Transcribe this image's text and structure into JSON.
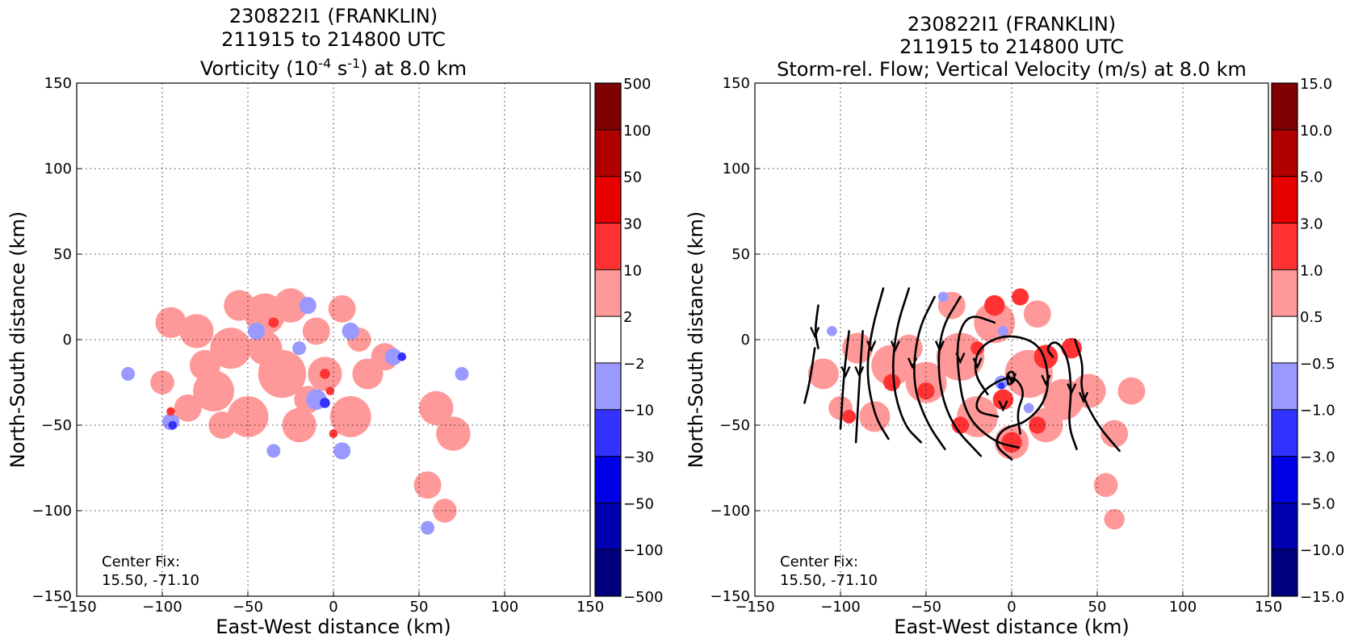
{
  "chart_data": [
    {
      "type": "heatmap",
      "title_lines": [
        "230822I1 (FRANKLIN)",
        "211915 to 214800 UTC"
      ],
      "title_var": {
        "prefix": "Vorticity (10",
        "exp1": "-4",
        "mid": " s",
        "exp2": "-1",
        "suffix": ") at 8.0 km"
      },
      "xlabel": "East-West distance (km)",
      "ylabel": "North-South distance (km)",
      "xlim": [
        -150,
        150
      ],
      "ylim": [
        -150,
        150
      ],
      "xticks": [
        -150,
        -100,
        -50,
        0,
        50,
        100,
        150
      ],
      "yticks": [
        -150,
        -100,
        -50,
        0,
        50,
        100,
        150
      ],
      "tick_labels": [
        "−150",
        "−100",
        "−50",
        "0",
        "50",
        "100",
        "150"
      ],
      "grid": true,
      "annotation": [
        "Center Fix:",
        "15.50, -71.10"
      ],
      "colorbar": {
        "ticks": [
          "500",
          "100",
          "50",
          "30",
          "10",
          "2",
          "−2",
          "−10",
          "−30",
          "−50",
          "−100",
          "−500"
        ],
        "colors": [
          "#7f0000",
          "#b00000",
          "#e60000",
          "#ff3333",
          "#ff9999",
          "#ffffff",
          "#9999ff",
          "#3333ff",
          "#0000e6",
          "#0000b0",
          "#00007f"
        ]
      },
      "fields": {
        "pos": [
          [
            -95,
            10,
            9
          ],
          [
            -80,
            5,
            10
          ],
          [
            -60,
            -5,
            12
          ],
          [
            -40,
            15,
            12
          ],
          [
            -30,
            -20,
            14
          ],
          [
            -70,
            -30,
            12
          ],
          [
            -50,
            -45,
            12
          ],
          [
            -20,
            -50,
            10
          ],
          [
            -5,
            -20,
            10
          ],
          [
            10,
            -45,
            12
          ],
          [
            20,
            -20,
            9
          ],
          [
            30,
            -10,
            8
          ],
          [
            -85,
            -40,
            8
          ],
          [
            -100,
            -25,
            7
          ],
          [
            -40,
            -5,
            10
          ],
          [
            -55,
            20,
            9
          ],
          [
            -25,
            20,
            10
          ],
          [
            5,
            18,
            8
          ],
          [
            -10,
            5,
            8
          ],
          [
            15,
            0,
            7
          ],
          [
            60,
            -40,
            10
          ],
          [
            70,
            -55,
            10
          ],
          [
            55,
            -85,
            8
          ],
          [
            65,
            -100,
            7
          ],
          [
            -75,
            -15,
            9
          ],
          [
            -65,
            -50,
            8
          ],
          [
            -15,
            -35,
            8
          ]
        ],
        "neg": [
          [
            -10,
            -35,
            6
          ],
          [
            -15,
            20,
            5
          ],
          [
            10,
            5,
            5
          ],
          [
            35,
            -10,
            5
          ],
          [
            -95,
            -48,
            5
          ],
          [
            -45,
            5,
            5
          ],
          [
            5,
            -65,
            5
          ],
          [
            -35,
            -65,
            4
          ],
          [
            -120,
            -20,
            4
          ],
          [
            75,
            -20,
            4
          ],
          [
            55,
            -110,
            4
          ],
          [
            -20,
            -5,
            4
          ]
        ],
        "strong_pos": [
          [
            -5,
            -20,
            3
          ],
          [
            -2,
            -30,
            2.5
          ],
          [
            -35,
            10,
            3
          ],
          [
            -95,
            -42,
            2.5
          ],
          [
            0,
            -55,
            2.5
          ]
        ],
        "strong_neg": [
          [
            -5,
            -37,
            3
          ],
          [
            -94,
            -50,
            2.5
          ],
          [
            40,
            -10,
            2.5
          ]
        ]
      }
    },
    {
      "type": "heatmap",
      "title_lines": [
        "230822I1 (FRANKLIN)",
        "211915 to 214800 UTC",
        "Storm-rel. Flow; Vertical Velocity (m/s) at 8.0 km"
      ],
      "xlabel": "East-West distance (km)",
      "ylabel": "North-South distance (km)",
      "xlim": [
        -150,
        150
      ],
      "ylim": [
        -150,
        150
      ],
      "xticks": [
        -150,
        -100,
        -50,
        0,
        50,
        100,
        150
      ],
      "yticks": [
        -150,
        -100,
        -50,
        0,
        50,
        100,
        150
      ],
      "tick_labels": [
        "−150",
        "−100",
        "−50",
        "0",
        "50",
        "100",
        "150"
      ],
      "grid": true,
      "annotation": [
        "Center Fix:",
        "15.50, -71.10"
      ],
      "colorbar": {
        "ticks": [
          "15.0",
          "10.0",
          "5.0",
          "3.0",
          "1.0",
          "0.5",
          "−0.5",
          "−1.0",
          "−3.0",
          "−5.0",
          "−10.0",
          "−15.0"
        ],
        "colors": [
          "#7f0000",
          "#b00000",
          "#e60000",
          "#ff3333",
          "#ff9999",
          "#ffffff",
          "#9999ff",
          "#3333ff",
          "#0000e6",
          "#0000b0",
          "#00007f"
        ]
      },
      "fields": {
        "pos": [
          [
            -110,
            -20,
            9
          ],
          [
            -90,
            -5,
            9
          ],
          [
            -70,
            -15,
            12
          ],
          [
            -50,
            -25,
            12
          ],
          [
            -30,
            -10,
            14
          ],
          [
            -10,
            10,
            12
          ],
          [
            10,
            -20,
            14
          ],
          [
            30,
            -35,
            12
          ],
          [
            -20,
            -45,
            12
          ],
          [
            0,
            -60,
            10
          ],
          [
            20,
            -50,
            10
          ],
          [
            45,
            -30,
            10
          ],
          [
            70,
            -30,
            8
          ],
          [
            60,
            -55,
            8
          ],
          [
            55,
            -85,
            7
          ],
          [
            60,
            -105,
            6
          ],
          [
            -80,
            -45,
            9
          ],
          [
            -60,
            -5,
            8
          ],
          [
            -100,
            -40,
            7
          ],
          [
            -35,
            20,
            8
          ],
          [
            15,
            15,
            8
          ]
        ],
        "strong_pos": [
          [
            -10,
            20,
            6
          ],
          [
            5,
            25,
            5
          ],
          [
            20,
            -10,
            7
          ],
          [
            35,
            -5,
            6
          ],
          [
            -5,
            -35,
            6
          ],
          [
            0,
            -60,
            6
          ],
          [
            -95,
            -45,
            4
          ],
          [
            -30,
            -50,
            5
          ],
          [
            15,
            -50,
            5
          ],
          [
            -50,
            -30,
            5
          ],
          [
            -70,
            -25,
            5
          ],
          [
            -20,
            -5,
            4
          ]
        ],
        "neg": [
          [
            -6,
            -25,
            4
          ],
          [
            -5,
            5,
            3
          ],
          [
            -105,
            5,
            3
          ],
          [
            10,
            -40,
            3
          ],
          [
            -40,
            25,
            3
          ]
        ],
        "strong_neg": [
          [
            -6,
            -27,
            2
          ]
        ]
      },
      "streamlines": [
        [
          [
            -113,
            20
          ],
          [
            -115,
            5
          ],
          [
            -113,
            -5
          ]
        ],
        [
          [
            -115,
            -5
          ],
          [
            -118,
            -25
          ],
          [
            -121,
            -37
          ]
        ],
        [
          [
            -95,
            5
          ],
          [
            -98,
            -20
          ],
          [
            -100,
            -52
          ]
        ],
        [
          [
            -87,
            5
          ],
          [
            -89,
            -25
          ],
          [
            -91,
            -60
          ]
        ],
        [
          [
            -75,
            30
          ],
          [
            -82,
            5
          ],
          [
            -85,
            -20
          ],
          [
            -80,
            -45
          ],
          [
            -72,
            -58
          ]
        ],
        [
          [
            -60,
            30
          ],
          [
            -68,
            5
          ],
          [
            -70,
            -25
          ],
          [
            -63,
            -50
          ],
          [
            -53,
            -60
          ]
        ],
        [
          [
            -45,
            25
          ],
          [
            -55,
            5
          ],
          [
            -58,
            -25
          ],
          [
            -50,
            -48
          ],
          [
            -39,
            -64
          ]
        ],
        [
          [
            -30,
            25
          ],
          [
            -42,
            5
          ],
          [
            -43,
            -25
          ],
          [
            -35,
            -50
          ],
          [
            -18,
            -68
          ]
        ],
        [
          [
            -10,
            10
          ],
          [
            -24,
            15
          ],
          [
            -31,
            5
          ],
          [
            -32,
            -15
          ],
          [
            -27,
            -45
          ],
          [
            -10,
            -60
          ],
          [
            4,
            -63
          ]
        ],
        [
          [
            -14,
            -32
          ],
          [
            -22,
            -20
          ],
          [
            -20,
            -5
          ],
          [
            -5,
            3
          ],
          [
            12,
            0
          ],
          [
            20,
            -10
          ],
          [
            22,
            -32
          ],
          [
            10,
            -48
          ],
          [
            -6,
            -52
          ],
          [
            -10,
            -62
          ],
          [
            0,
            -70
          ]
        ],
        [
          [
            -2,
            -26
          ],
          [
            -3,
            -20
          ],
          [
            1,
            -18
          ],
          [
            2,
            -24
          ],
          [
            -1,
            -26
          ]
        ],
        [
          [
            5,
            -55
          ],
          [
            3,
            -42
          ],
          [
            8,
            -30
          ],
          [
            0,
            -20
          ],
          [
            -18,
            -30
          ],
          [
            -22,
            -42
          ],
          [
            -8,
            -45
          ]
        ],
        [
          [
            24,
            -10
          ],
          [
            20,
            -5
          ],
          [
            26,
            0
          ],
          [
            33,
            -10
          ],
          [
            35,
            -30
          ],
          [
            33,
            -50
          ],
          [
            38,
            -64
          ]
        ],
        [
          [
            37,
            0
          ],
          [
            42,
            -15
          ],
          [
            40,
            -30
          ],
          [
            50,
            -50
          ],
          [
            63,
            -65
          ]
        ]
      ],
      "arrows": [
        [
          -115,
          3
        ],
        [
          -97,
          -20
        ],
        [
          -89,
          -20
        ],
        [
          -82,
          -5
        ],
        [
          -68,
          -5
        ],
        [
          -58,
          -15
        ],
        [
          -42,
          -5
        ],
        [
          -30,
          -12
        ],
        [
          -20,
          -15
        ],
        [
          20,
          -25
        ],
        [
          35,
          -30
        ],
        [
          42,
          -35
        ],
        [
          -5,
          -40
        ],
        [
          0,
          -24
        ]
      ]
    }
  ]
}
